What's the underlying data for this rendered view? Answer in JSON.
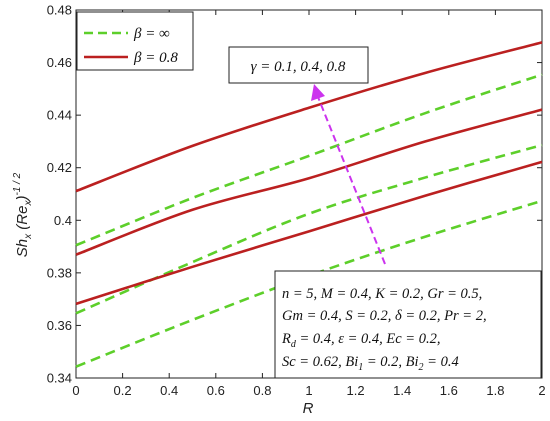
{
  "chart_data": {
    "type": "line",
    "title": "",
    "xlabel": "R",
    "ylabel": "Sh_x (Re_x)^-1/2",
    "xlim": [
      0,
      2
    ],
    "ylim": [
      0.34,
      0.48
    ],
    "x_ticks": [
      "0",
      "0.2",
      "0.4",
      "0.6",
      "0.8",
      "1",
      "1.2",
      "1.4",
      "1.6",
      "1.8",
      "2"
    ],
    "y_ticks": [
      "0.34",
      "0.36",
      "0.38",
      "0.4",
      "0.42",
      "0.44",
      "0.46",
      "0.48"
    ],
    "grid": false,
    "legend_position": "top-left",
    "legend": [
      {
        "label": "β = ∞",
        "color": "#5dcf2a",
        "style": "dashed"
      },
      {
        "label": "β = 0.8",
        "color": "#bb2020",
        "style": "solid"
      }
    ],
    "annotation": "γ = 0.1, 0.4, 0.8",
    "parameters": [
      "n = 5, M = 0.4, K = 0.2, Gr = 0.5,",
      "Gm = 0.4, S = 0.2, δ = 0.2, Pr = 2,",
      "Rd = 0.4, ε = 0.4, Ec = 0.2,",
      "Sc = 0.62, Bi1 = 0.2, Bi2 = 0.4"
    ],
    "series": [
      {
        "group": "β = ∞",
        "x": [
          0,
          0.5,
          1,
          1.5,
          2
        ],
        "y": [
          0.3443,
          0.3621,
          0.3789,
          0.3938,
          0.4074
        ]
      },
      {
        "group": "β = ∞",
        "x": [
          0,
          0.5,
          1,
          1.5,
          2
        ],
        "y": [
          0.3646,
          0.3841,
          0.4025,
          0.4163,
          0.4286
        ]
      },
      {
        "group": "β = ∞",
        "x": [
          0,
          0.5,
          1,
          1.5,
          2
        ],
        "y": [
          0.3905,
          0.4085,
          0.4245,
          0.4408,
          0.4554
        ]
      },
      {
        "group": "β = 0.8",
        "x": [
          0,
          0.5,
          1,
          1.5,
          2
        ],
        "y": [
          0.3682,
          0.3823,
          0.3958,
          0.4094,
          0.4222
        ]
      },
      {
        "group": "β = 0.8",
        "x": [
          0,
          0.5,
          1,
          1.5,
          2
        ],
        "y": [
          0.3869,
          0.404,
          0.416,
          0.43,
          0.4421
        ]
      },
      {
        "group": "β = 0.8",
        "x": [
          0,
          0.5,
          1,
          1.5,
          2
        ],
        "y": [
          0.4111,
          0.4283,
          0.4428,
          0.4561,
          0.4677
        ]
      }
    ]
  }
}
